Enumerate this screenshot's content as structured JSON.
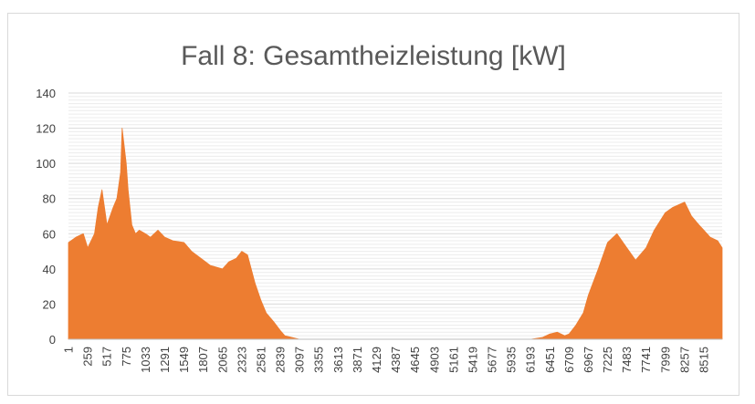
{
  "chart_data": {
    "type": "area",
    "title": "Fall 8: Gesamtheizleistung [kW]",
    "xlabel": "",
    "ylabel": "",
    "ylim": [
      0,
      140
    ],
    "yticks": [
      "0",
      "20",
      "40",
      "60",
      "80",
      "100",
      "120",
      "140"
    ],
    "xlim": [
      1,
      8760
    ],
    "xticks": [
      "1",
      "259",
      "517",
      "775",
      "1033",
      "1291",
      "1549",
      "1807",
      "2065",
      "2323",
      "2581",
      "2839",
      "3097",
      "3355",
      "3613",
      "3871",
      "4129",
      "4387",
      "4645",
      "4903",
      "5161",
      "5419",
      "5677",
      "5935",
      "6193",
      "6451",
      "6709",
      "6967",
      "7225",
      "7483",
      "7741",
      "7999",
      "8257",
      "8515"
    ],
    "grid": true,
    "legend": "none",
    "series_color": "#ED7D31",
    "series": [
      {
        "x": [
          1,
          100,
          200,
          259,
          350,
          400,
          450,
          517,
          600,
          650,
          700,
          720,
          775,
          800,
          850,
          900,
          950,
          1033,
          1100,
          1200,
          1291,
          1400,
          1549,
          1650,
          1807,
          1900,
          2065,
          2150,
          2250,
          2323,
          2400,
          2500,
          2581,
          2650,
          2750,
          2839,
          2900,
          3097,
          6193,
          6350,
          6451,
          6550,
          6650,
          6709,
          6800,
          6900,
          6967,
          7100,
          7225,
          7350,
          7483,
          7600,
          7741,
          7850,
          7999,
          8100,
          8257,
          8350,
          8450,
          8515,
          8600,
          8700,
          8760
        ],
        "y": [
          55,
          58,
          60,
          52,
          60,
          75,
          85,
          65,
          75,
          80,
          95,
          120,
          100,
          85,
          65,
          60,
          62,
          60,
          58,
          62,
          58,
          56,
          55,
          50,
          45,
          42,
          40,
          44,
          46,
          50,
          48,
          32,
          22,
          15,
          10,
          5,
          2,
          0,
          0,
          1,
          3,
          4,
          2,
          3,
          8,
          15,
          25,
          40,
          55,
          60,
          52,
          45,
          52,
          62,
          72,
          75,
          78,
          70,
          65,
          62,
          58,
          56,
          52
        ]
      }
    ]
  }
}
